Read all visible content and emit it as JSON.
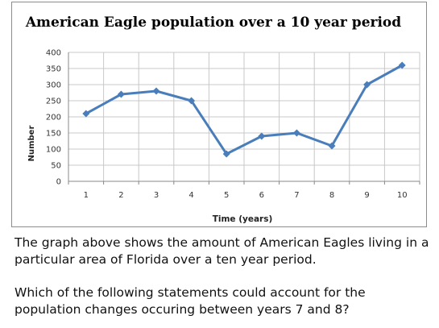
{
  "question": {
    "paragraph1": "The graph above shows the amount of American Eagles living in a particular area of Florida over a ten year period.",
    "paragraph2": "Which of the following statements could account for the population changes occuring between years 7 and 8?"
  },
  "chart_data": {
    "type": "line",
    "title": "American Eagle population over a 10 year period",
    "xlabel": "Time (years)",
    "ylabel": "Number",
    "x": [
      1,
      2,
      3,
      4,
      5,
      6,
      7,
      8,
      9,
      10
    ],
    "series": [
      {
        "values": [
          210,
          270,
          280,
          250,
          85,
          140,
          150,
          110,
          300,
          360
        ]
      }
    ],
    "ylim": [
      0,
      400
    ],
    "yticks": [
      0,
      50,
      100,
      150,
      200,
      250,
      300,
      350,
      400
    ],
    "xticks": [
      1,
      2,
      3,
      4,
      5,
      6,
      7,
      8,
      9,
      10
    ],
    "grid": true,
    "legend": "none",
    "line_color": "#4a7ebb",
    "grid_color": "#c8c8c8"
  }
}
